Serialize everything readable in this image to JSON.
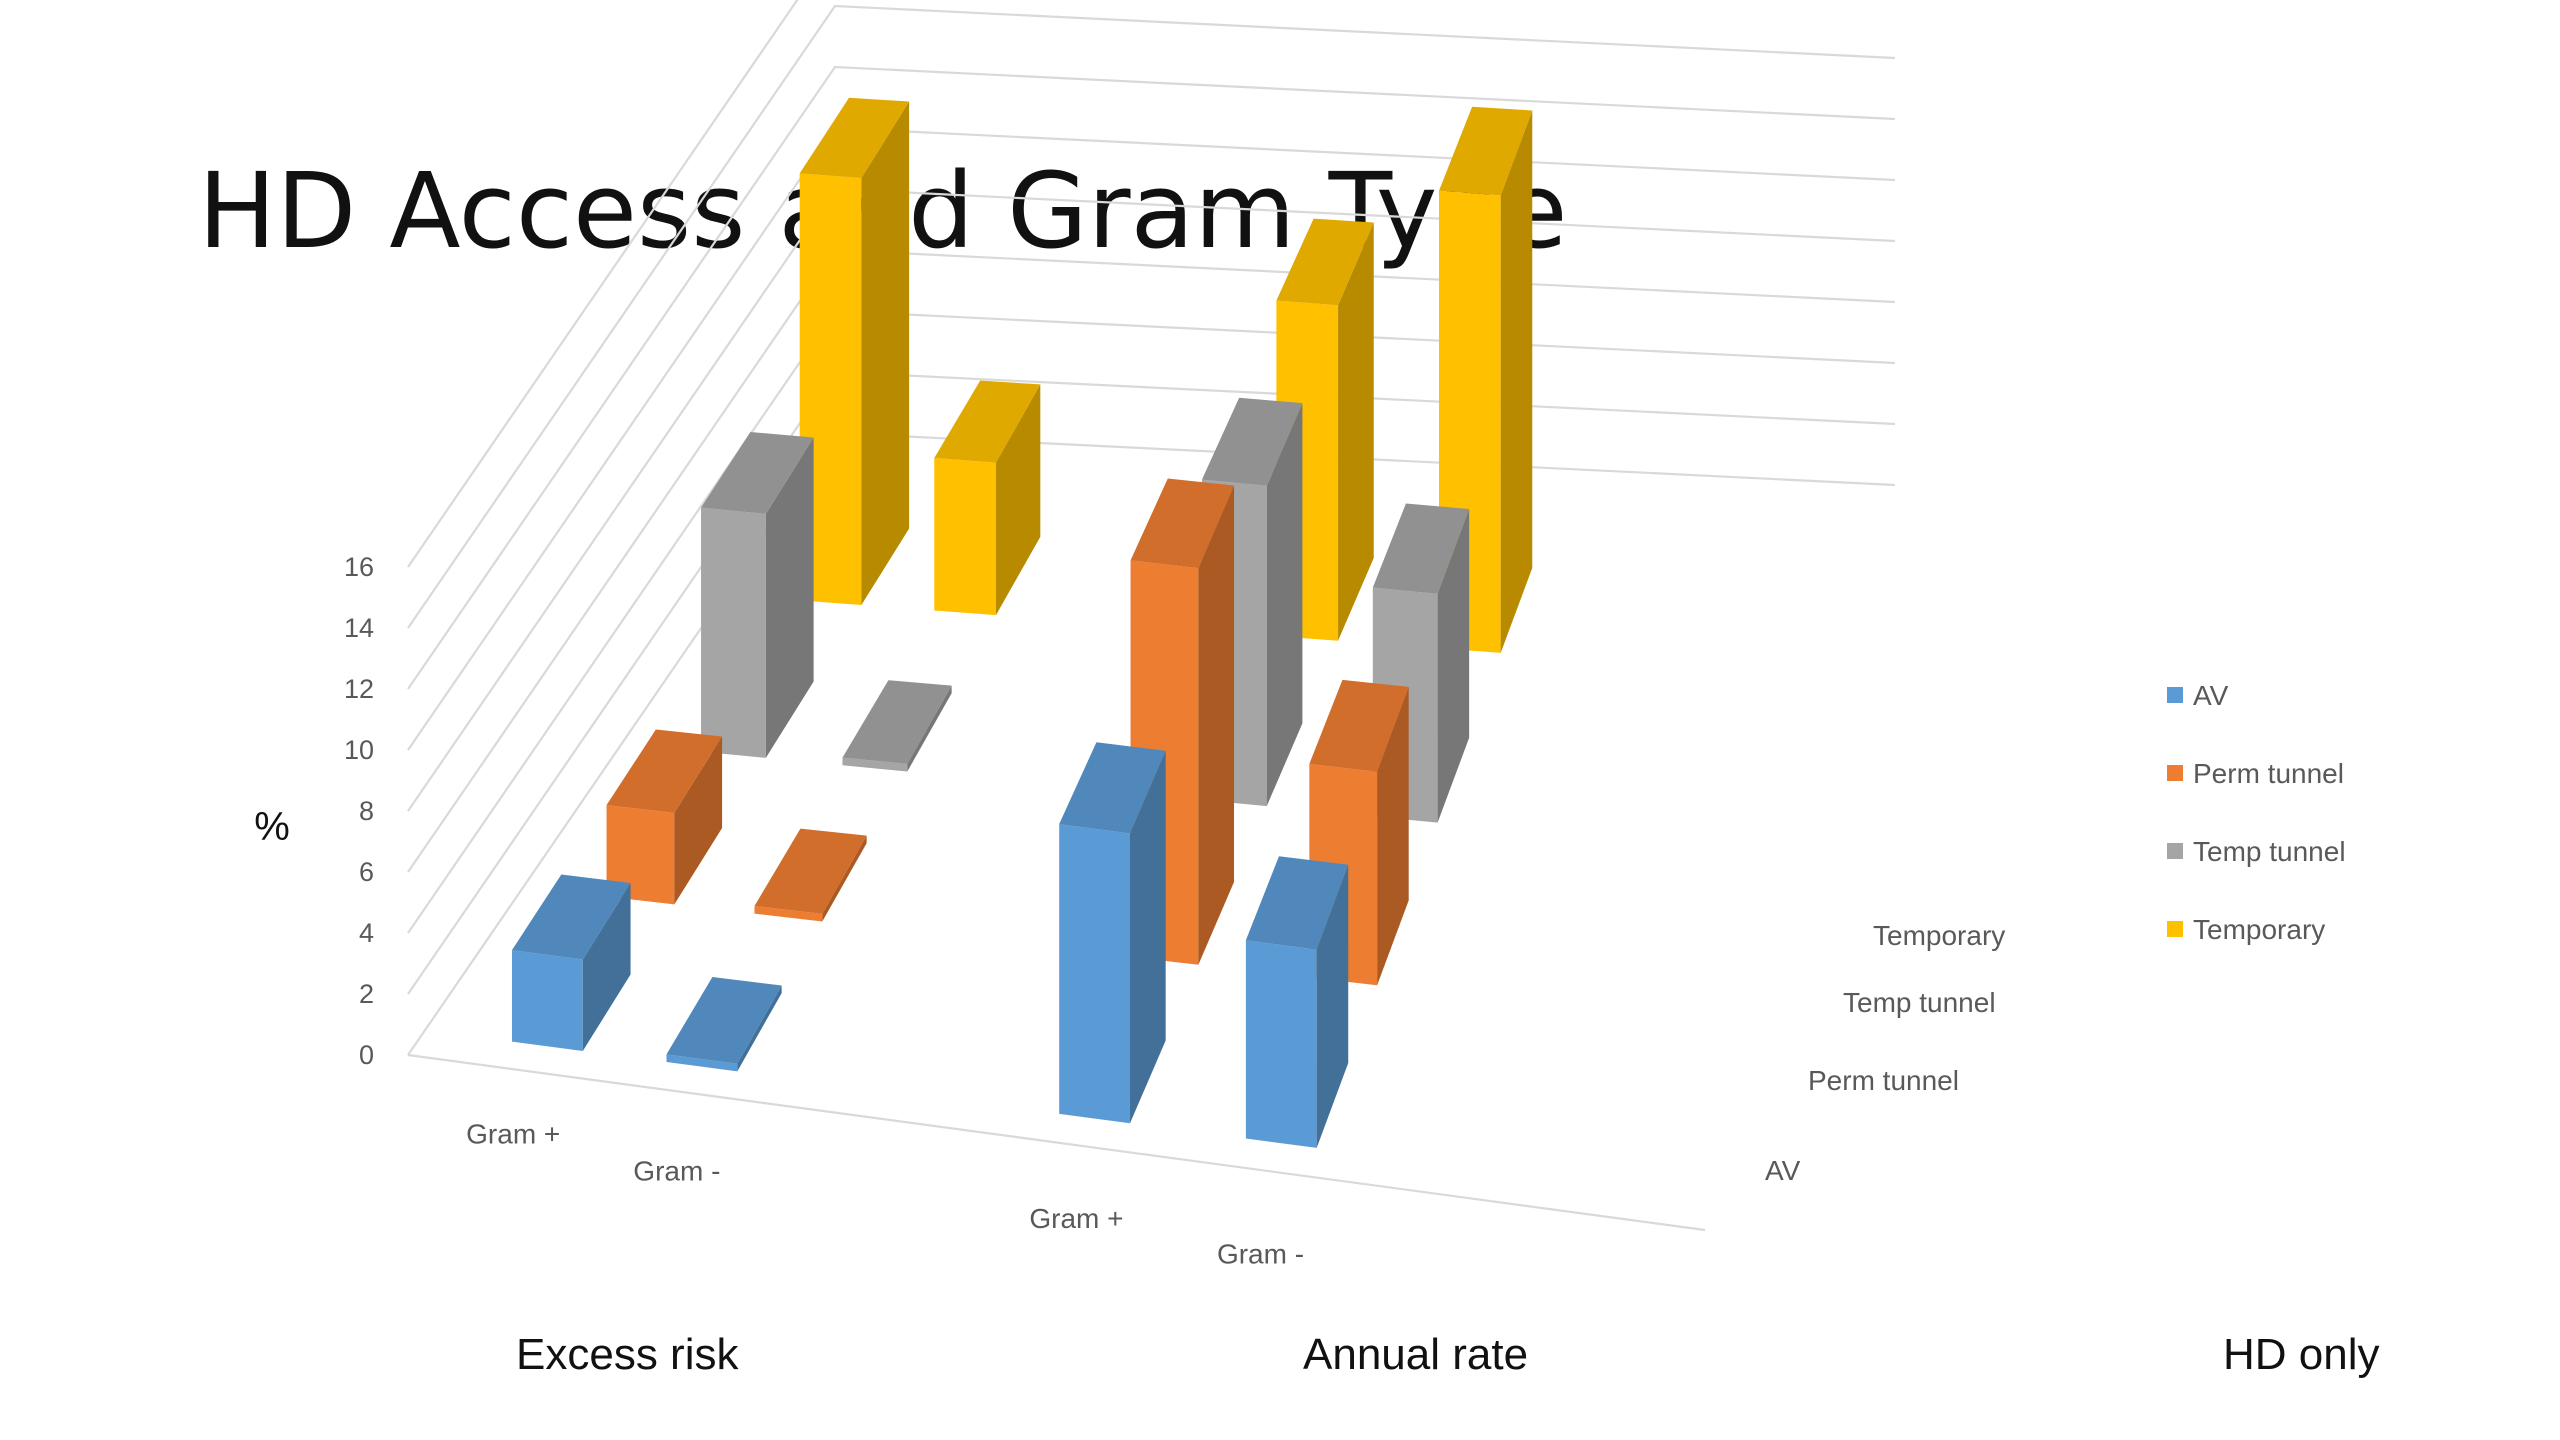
{
  "title": "HD Access and Gram Type",
  "chart_data": {
    "type": "bar",
    "subtype": "3d-column",
    "title": "HD Access and Gram Type",
    "ylabel": "%",
    "ylim": [
      0,
      16
    ],
    "yticks": [
      "0",
      "2",
      "4",
      "6",
      "8",
      "10",
      "12",
      "14",
      "16"
    ],
    "grid": true,
    "legend_position": "right",
    "categories": [
      "Gram +",
      "Gram -",
      "Gram +",
      "Gram -"
    ],
    "groups": [
      {
        "label": "Excess risk",
        "categories": [
          "Gram +",
          "Gram -"
        ]
      },
      {
        "label": "Annual rate",
        "categories": [
          "Gram +",
          "Gram -"
        ]
      }
    ],
    "depth_labels": [
      "AV",
      "Perm tunnel",
      "Temp tunnel",
      "Temporary"
    ],
    "series": [
      {
        "name": "AV",
        "color": "#5B9BD5",
        "values": [
          3,
          0,
          9.5,
          6.5
        ]
      },
      {
        "name": "Perm tunnel",
        "color": "#ED7D31",
        "values": [
          3,
          0,
          13,
          7
        ]
      },
      {
        "name": "Temp tunnel",
        "color": "#A5A5A5",
        "values": [
          8,
          0,
          10.5,
          7.5
        ]
      },
      {
        "name": "Temporary",
        "color": "#FFC000",
        "values": [
          14,
          5,
          11,
          15
        ]
      }
    ]
  },
  "legend": [
    {
      "label": "AV",
      "color": "#5B9BD5"
    },
    {
      "label": "Perm tunnel",
      "color": "#ED7D31"
    },
    {
      "label": "Temp tunnel",
      "color": "#A5A5A5"
    },
    {
      "label": "Temporary",
      "color": "#FFC000"
    }
  ],
  "footer": {
    "excess_risk": "Excess risk",
    "annual_rate": "Annual rate",
    "hd_only": "HD only"
  }
}
